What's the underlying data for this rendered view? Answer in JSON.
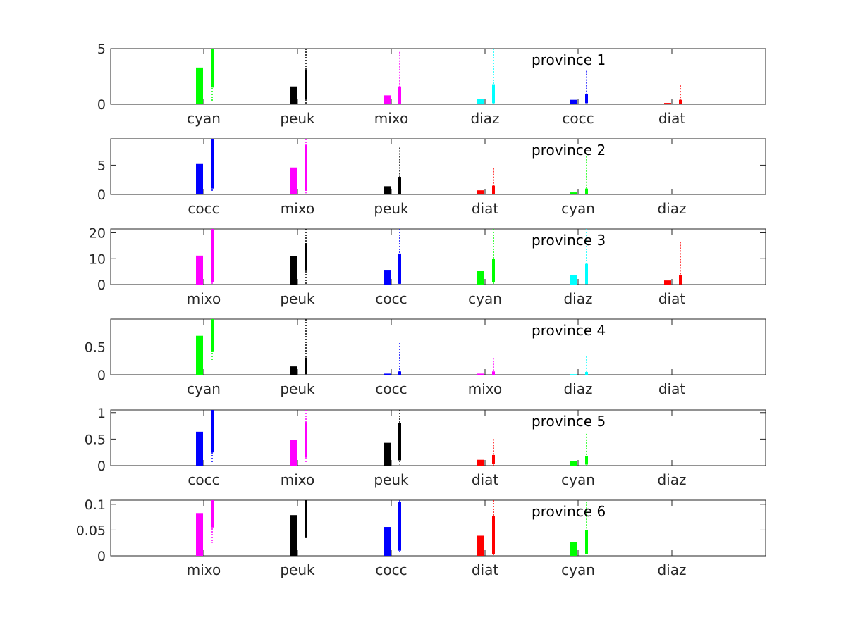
{
  "chart_data": [
    {
      "type": "bar",
      "title": "province 1",
      "ylim": [
        0,
        5
      ],
      "yticks": [
        0,
        5
      ],
      "ytick_labels": [
        "0",
        "5"
      ],
      "categories": [
        "cyan",
        "peuk",
        "mixo",
        "diaz",
        "cocc",
        "diat"
      ],
      "colors": [
        "#00ff00",
        "#000000",
        "#ff00ff",
        "#00ffff",
        "#0000ff",
        "#ff0000"
      ],
      "values": [
        3.3,
        1.6,
        0.8,
        0.5,
        0.4,
        0.12
      ],
      "box_q1": [
        1.5,
        0.5,
        0.05,
        0.1,
        0.1,
        0.0
      ],
      "box_q3": [
        5.0,
        3.1,
        1.6,
        1.8,
        0.9,
        0.4
      ],
      "whisker_low": [
        0.3,
        0.0,
        0.0,
        0.0,
        0.0,
        0.0
      ],
      "whisker_high": [
        5.0,
        5.0,
        4.7,
        5.0,
        3.0,
        1.7
      ]
    },
    {
      "type": "bar",
      "title": "province 2",
      "ylim": [
        0,
        9.5
      ],
      "yticks": [
        0,
        5
      ],
      "ytick_labels": [
        "0",
        "5"
      ],
      "categories": [
        "cocc",
        "mixo",
        "peuk",
        "diat",
        "cyan",
        "diaz"
      ],
      "colors": [
        "#0000ff",
        "#ff00ff",
        "#000000",
        "#ff0000",
        "#00ff00",
        "#00ffff"
      ],
      "values": [
        5.2,
        4.6,
        1.4,
        0.7,
        0.35,
        0.0
      ],
      "box_q1": [
        1.0,
        0.6,
        0.1,
        0.05,
        0.05,
        0.0
      ],
      "box_q3": [
        9.5,
        8.4,
        3.0,
        1.5,
        1.0,
        0.0
      ],
      "whisker_low": [
        0.5,
        0.2,
        0.0,
        0.0,
        0.0,
        0.0
      ],
      "whisker_high": [
        9.5,
        9.5,
        8.0,
        4.5,
        7.0,
        0.0
      ]
    },
    {
      "type": "bar",
      "title": "province 3",
      "ylim": [
        0,
        21.5
      ],
      "yticks": [
        0,
        10,
        20
      ],
      "ytick_labels": [
        "0",
        "10",
        "20"
      ],
      "categories": [
        "mixo",
        "peuk",
        "cocc",
        "cyan",
        "diaz",
        "diat"
      ],
      "colors": [
        "#ff00ff",
        "#000000",
        "#0000ff",
        "#00ff00",
        "#00ffff",
        "#ff0000"
      ],
      "values": [
        11.2,
        11.0,
        5.7,
        5.4,
        3.6,
        1.6
      ],
      "box_q1": [
        1.0,
        5.5,
        0.3,
        1.0,
        0.2,
        0.1
      ],
      "box_q3": [
        21.5,
        16.0,
        12.0,
        10.0,
        8.0,
        3.7
      ],
      "whisker_low": [
        0.0,
        0.0,
        0.0,
        0.0,
        0.0,
        0.0
      ],
      "whisker_high": [
        21.5,
        21.5,
        21.5,
        21.5,
        21.5,
        16.5
      ]
    },
    {
      "type": "bar",
      "title": "province 4",
      "ylim": [
        0,
        1.0
      ],
      "yticks": [
        0,
        0.5
      ],
      "ytick_labels": [
        "0",
        "0.5"
      ],
      "categories": [
        "cyan",
        "peuk",
        "cocc",
        "mixo",
        "diaz",
        "diat"
      ],
      "colors": [
        "#00ff00",
        "#000000",
        "#0000ff",
        "#ff00ff",
        "#00ffff",
        "#ff0000"
      ],
      "values": [
        0.7,
        0.15,
        0.02,
        0.02,
        0.01,
        0.0
      ],
      "box_q1": [
        0.42,
        0.01,
        0.0,
        0.0,
        0.0,
        0.0
      ],
      "box_q3": [
        1.0,
        0.31,
        0.06,
        0.06,
        0.05,
        0.0
      ],
      "whisker_low": [
        0.25,
        0.0,
        0.0,
        0.0,
        0.0,
        0.0
      ],
      "whisker_high": [
        1.0,
        1.0,
        0.57,
        0.3,
        0.33,
        0.0
      ]
    },
    {
      "type": "bar",
      "title": "province 5",
      "ylim": [
        0,
        1.05
      ],
      "yticks": [
        0,
        0.5,
        1
      ],
      "ytick_labels": [
        "0",
        "0.5",
        "1"
      ],
      "categories": [
        "cocc",
        "mixo",
        "peuk",
        "diat",
        "cyan",
        "diaz"
      ],
      "colors": [
        "#0000ff",
        "#ff00ff",
        "#000000",
        "#ff0000",
        "#00ff00",
        "#00ffff"
      ],
      "values": [
        0.64,
        0.48,
        0.43,
        0.11,
        0.08,
        0.0
      ],
      "box_q1": [
        0.25,
        0.15,
        0.1,
        0.03,
        0.02,
        0.0
      ],
      "box_q3": [
        1.05,
        0.82,
        0.8,
        0.2,
        0.18,
        0.0
      ],
      "whisker_low": [
        0.05,
        0.05,
        0.02,
        0.0,
        0.0,
        0.0
      ],
      "whisker_high": [
        1.05,
        1.05,
        1.05,
        0.5,
        0.6,
        0.0
      ]
    },
    {
      "type": "bar",
      "title": "province 6",
      "ylim": [
        0,
        0.108
      ],
      "yticks": [
        0,
        0.05,
        0.1
      ],
      "ytick_labels": [
        "0",
        "0.05",
        "0.1"
      ],
      "categories": [
        "mixo",
        "peuk",
        "cocc",
        "diat",
        "cyan",
        "diaz"
      ],
      "colors": [
        "#ff00ff",
        "#000000",
        "#0000ff",
        "#ff0000",
        "#00ff00",
        "#00ffff"
      ],
      "values": [
        0.083,
        0.079,
        0.056,
        0.039,
        0.026,
        0.0
      ],
      "box_q1": [
        0.055,
        0.035,
        0.01,
        0.003,
        0.003,
        0.0
      ],
      "box_q3": [
        0.108,
        0.108,
        0.105,
        0.077,
        0.05,
        0.0
      ],
      "whisker_low": [
        0.025,
        0.03,
        0.005,
        0.0,
        0.0,
        0.0
      ],
      "whisker_high": [
        0.108,
        0.108,
        0.108,
        0.108,
        0.105,
        0.0
      ]
    }
  ]
}
